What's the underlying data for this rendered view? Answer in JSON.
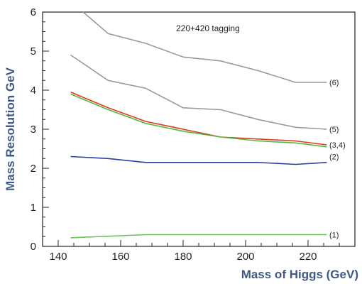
{
  "chart_data": {
    "type": "line",
    "title": "",
    "annotation": "220+420 tagging",
    "xlabel": "Mass of Higgs (GeV)",
    "ylabel": "Mass Resolution GeV",
    "xlim": [
      135,
      235
    ],
    "ylim": [
      0,
      6
    ],
    "xticks": [
      140,
      160,
      180,
      200,
      220
    ],
    "yticks": [
      0,
      1,
      2,
      3,
      4,
      5,
      6
    ],
    "grid": false,
    "series": [
      {
        "name": "(6)",
        "color": "#9a9a9a",
        "x": [
          148,
          156,
          168,
          180,
          192,
          204,
          216,
          226
        ],
        "y": [
          6.0,
          5.45,
          5.2,
          4.85,
          4.75,
          4.5,
          4.2,
          4.2
        ]
      },
      {
        "name": "(5)",
        "color": "#9a9a9a",
        "x": [
          144,
          156,
          168,
          180,
          192,
          204,
          216,
          226
        ],
        "y": [
          4.9,
          4.25,
          4.05,
          3.55,
          3.5,
          3.25,
          3.05,
          3.0
        ]
      },
      {
        "name": "(3,4)",
        "color": "#e03a1c",
        "x": [
          144,
          156,
          168,
          180,
          192,
          204,
          216,
          226
        ],
        "y": [
          3.95,
          3.55,
          3.2,
          3.0,
          2.8,
          2.75,
          2.7,
          2.6
        ]
      },
      {
        "name": "(3,4)",
        "color": "#55b845",
        "x": [
          144,
          156,
          168,
          180,
          192,
          204,
          216,
          226
        ],
        "y": [
          3.9,
          3.5,
          3.15,
          2.95,
          2.8,
          2.7,
          2.65,
          2.55
        ]
      },
      {
        "name": "(2)",
        "color": "#2a3f9e",
        "x": [
          144,
          156,
          168,
          180,
          192,
          204,
          216,
          226
        ],
        "y": [
          2.3,
          2.25,
          2.15,
          2.15,
          2.15,
          2.15,
          2.1,
          2.15
        ]
      },
      {
        "name": "(1)",
        "color": "#6cc35a",
        "x": [
          144,
          156,
          168,
          180,
          192,
          204,
          216,
          226
        ],
        "y": [
          0.22,
          0.26,
          0.3,
          0.3,
          0.3,
          0.3,
          0.3,
          0.3
        ]
      }
    ],
    "series_labels": [
      {
        "text": "(6)",
        "y": 4.2
      },
      {
        "text": "(5)",
        "y": 3.0
      },
      {
        "text": "(3,4)",
        "y": 2.6
      },
      {
        "text": "(2)",
        "y": 2.3
      },
      {
        "text": "(1)",
        "y": 0.3
      }
    ]
  }
}
